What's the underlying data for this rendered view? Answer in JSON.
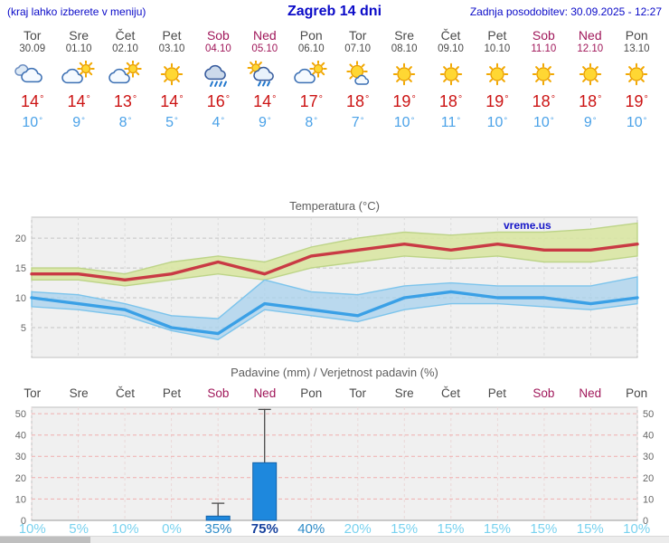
{
  "header": {
    "left_note": "(kraj lahko izberete v meniju)",
    "title": "Zagreb 14 dni",
    "last_update": "Zadnja posodobitev: 30.09.2025 - 12:27"
  },
  "days": [
    {
      "name": "Tor",
      "date": "30.09",
      "weekend": false,
      "icon": "cloudy",
      "high": 14,
      "low": 10
    },
    {
      "name": "Sre",
      "date": "01.10",
      "weekend": false,
      "icon": "partly-cloudy",
      "high": 14,
      "low": 9
    },
    {
      "name": "Čet",
      "date": "02.10",
      "weekend": false,
      "icon": "partly-cloudy",
      "high": 13,
      "low": 8
    },
    {
      "name": "Pet",
      "date": "03.10",
      "weekend": false,
      "icon": "sunny",
      "high": 14,
      "low": 5
    },
    {
      "name": "Sob",
      "date": "04.10",
      "weekend": true,
      "icon": "rain",
      "high": 16,
      "low": 4
    },
    {
      "name": "Ned",
      "date": "05.10",
      "weekend": true,
      "icon": "sun-rain",
      "high": 14,
      "low": 9
    },
    {
      "name": "Pon",
      "date": "06.10",
      "weekend": false,
      "icon": "partly-cloudy",
      "high": 17,
      "low": 8
    },
    {
      "name": "Tor",
      "date": "07.10",
      "weekend": false,
      "icon": "mostly-sunny",
      "high": 18,
      "low": 7
    },
    {
      "name": "Sre",
      "date": "08.10",
      "weekend": false,
      "icon": "sunny",
      "high": 19,
      "low": 10
    },
    {
      "name": "Čet",
      "date": "09.10",
      "weekend": false,
      "icon": "sunny",
      "high": 18,
      "low": 11
    },
    {
      "name": "Pet",
      "date": "10.10",
      "weekend": false,
      "icon": "sunny",
      "high": 19,
      "low": 10
    },
    {
      "name": "Sob",
      "date": "11.10",
      "weekend": true,
      "icon": "sunny",
      "high": 18,
      "low": 10
    },
    {
      "name": "Ned",
      "date": "12.10",
      "weekend": true,
      "icon": "sunny",
      "high": 18,
      "low": 9
    },
    {
      "name": "Pon",
      "date": "13.10",
      "weekend": false,
      "icon": "sunny",
      "high": 19,
      "low": 10
    }
  ],
  "chart_data": [
    {
      "type": "line",
      "title": "Temperatura (°C)",
      "x": [
        "Tor",
        "Sre",
        "Čet",
        "Pet",
        "Sob",
        "Ned",
        "Pon",
        "Tor",
        "Sre",
        "Čet",
        "Pet",
        "Sob",
        "Ned",
        "Pon"
      ],
      "ylim": [
        0,
        23.5
      ],
      "yticks": [
        5,
        10,
        15,
        20
      ],
      "grid": true,
      "legend": "none",
      "watermark": "vreme.us",
      "series": [
        {
          "name": "max temperature",
          "color": "#c93a44",
          "values": [
            14,
            14,
            13,
            14,
            16,
            14,
            17,
            18,
            19,
            18,
            19,
            18,
            18,
            19
          ]
        },
        {
          "name": "min temperature",
          "color": "#3aa0e6",
          "values": [
            10,
            9,
            8,
            5,
            4,
            9,
            8,
            7,
            10,
            11,
            10,
            10,
            9,
            10
          ]
        }
      ],
      "bands": [
        {
          "name": "max-range",
          "color": "#d9e6a3",
          "edge": "#bdd488",
          "opacity": 0.9,
          "upper": [
            15,
            15,
            14,
            16,
            17,
            16,
            18.5,
            20,
            21,
            20.5,
            21,
            21,
            21.5,
            22.5
          ],
          "lower": [
            13,
            13,
            12,
            13,
            14,
            13,
            15,
            16,
            17,
            16.5,
            17,
            16,
            16,
            17
          ]
        },
        {
          "name": "min-range",
          "color": "#a8d2ee",
          "edge": "#7cc4ec",
          "opacity": 0.75,
          "upper": [
            11,
            10.5,
            9,
            7,
            6.5,
            13,
            11,
            10.5,
            12,
            12.5,
            12,
            12,
            12,
            13.5
          ],
          "lower": [
            8.5,
            8,
            7,
            4.5,
            3,
            8,
            7,
            6,
            8,
            9,
            9,
            8.5,
            8,
            9
          ]
        }
      ]
    },
    {
      "type": "bar",
      "title": "Padavine (mm) / Verjetnost padavin (%)",
      "x": [
        "Tor",
        "Sre",
        "Čet",
        "Pet",
        "Sob",
        "Ned",
        "Pon",
        "Tor",
        "Sre",
        "Čet",
        "Pet",
        "Sob",
        "Ned",
        "Pon"
      ],
      "ylim": [
        0,
        53
      ],
      "yticks": [
        0,
        10,
        20,
        30,
        40,
        50
      ],
      "values": [
        0,
        0,
        0,
        0,
        2,
        27,
        0,
        0,
        0,
        0,
        0,
        0,
        0,
        0
      ],
      "range_max": [
        0,
        0,
        0,
        0,
        8,
        52,
        0,
        0,
        0,
        0,
        0,
        0,
        0,
        0
      ],
      "probabilities": [
        {
          "text": "10%",
          "color": "#79d2ef",
          "bold": false
        },
        {
          "text": "5%",
          "color": "#79d2ef",
          "bold": false
        },
        {
          "text": "10%",
          "color": "#79d2ef",
          "bold": false
        },
        {
          "text": "0%",
          "color": "#79d2ef",
          "bold": false
        },
        {
          "text": "35%",
          "color": "#2f8cc8",
          "bold": false
        },
        {
          "text": "75%",
          "color": "#16419e",
          "bold": true
        },
        {
          "text": "40%",
          "color": "#2f8cc8",
          "bold": false
        },
        {
          "text": "20%",
          "color": "#79d2ef",
          "bold": false
        },
        {
          "text": "15%",
          "color": "#79d2ef",
          "bold": false
        },
        {
          "text": "15%",
          "color": "#79d2ef",
          "bold": false
        },
        {
          "text": "15%",
          "color": "#79d2ef",
          "bold": false
        },
        {
          "text": "15%",
          "color": "#79d2ef",
          "bold": false
        },
        {
          "text": "15%",
          "color": "#79d2ef",
          "bold": false
        },
        {
          "text": "10%",
          "color": "#79d2ef",
          "bold": false
        }
      ]
    }
  ],
  "colors": {
    "header_text": "#0a0ac8",
    "weekend": "#a0175a",
    "weekday": "#4a4a4a",
    "high_temp": "#cc1414",
    "low_temp": "#4ba2e8",
    "bar_fill": "#1e88dd",
    "bar_border": "#1261a8",
    "chart_bg": "#f0f0f0",
    "watermark": "#1515c8"
  }
}
